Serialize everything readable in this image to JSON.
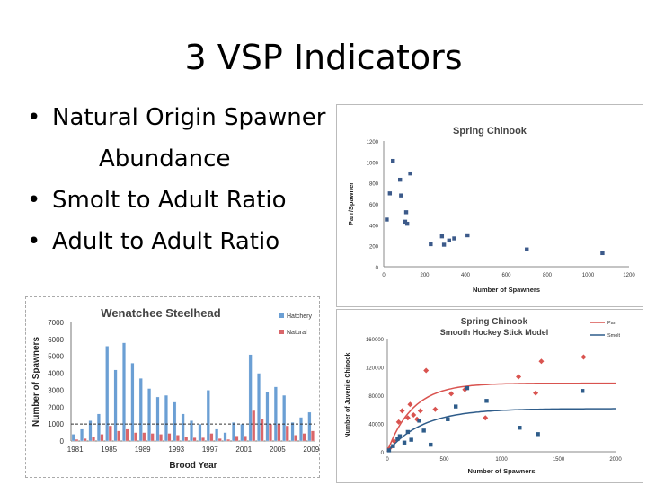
{
  "slide": {
    "title": "3 VSP Indicators",
    "bullets": [
      {
        "text": "Natural Origin Spawner",
        "cont": "Abundance"
      },
      {
        "text": "Smolt to Adult Ratio",
        "cont": ""
      },
      {
        "text": "Adult to Adult Ratio",
        "cont": ""
      }
    ],
    "bullet_symbol": "•"
  },
  "chart_data": [
    {
      "id": "spring-chinook-scatter",
      "type": "scatter",
      "title": "Spring Chinook",
      "xlabel": "Number of Spawners",
      "ylabel": "Parr/Spawner",
      "xlim": [
        0,
        1200
      ],
      "ylim": [
        0,
        1200
      ],
      "xticks": [
        0,
        200,
        400,
        600,
        800,
        1000,
        1200
      ],
      "yticks": [
        0,
        200,
        400,
        600,
        800,
        1000,
        1200
      ],
      "grid": false,
      "color": "#3c5a8a",
      "series": [
        {
          "points": [
            [
              15,
              450
            ],
            [
              30,
              700
            ],
            [
              45,
              1010
            ],
            [
              80,
              830
            ],
            [
              85,
              680
            ],
            [
              110,
              520
            ],
            [
              105,
              430
            ],
            [
              115,
              410
            ],
            [
              130,
              890
            ],
            [
              230,
              215
            ],
            [
              285,
              290
            ],
            [
              295,
              210
            ],
            [
              320,
              250
            ],
            [
              345,
              270
            ],
            [
              410,
              300
            ],
            [
              700,
              165
            ],
            [
              1070,
              130
            ]
          ]
        }
      ]
    },
    {
      "id": "wenatchee-steelhead",
      "type": "bar",
      "title": "Wenatchee Steelhead",
      "xlabel": "Brood Year",
      "ylabel": "Number of Spawners",
      "ylim": [
        0,
        7000
      ],
      "yticks": [
        0,
        1000,
        2000,
        3000,
        4000,
        5000,
        6000,
        7000
      ],
      "xtick_labels": [
        "1981",
        "1985",
        "1989",
        "1993",
        "1997",
        "2001",
        "2005",
        "2009"
      ],
      "legend": "top-right",
      "reference_line": 1000,
      "categories": [
        "1981",
        "1982",
        "1983",
        "1984",
        "1985",
        "1986",
        "1987",
        "1988",
        "1989",
        "1990",
        "1991",
        "1992",
        "1993",
        "1994",
        "1995",
        "1996",
        "1997",
        "1998",
        "1999",
        "2000",
        "2001",
        "2002",
        "2003",
        "2004",
        "2005",
        "2006",
        "2007",
        "2008",
        "2009"
      ],
      "series": [
        {
          "name": "Hatchery",
          "color": "#6b9fd4",
          "values": [
            400,
            700,
            1200,
            1600,
            5600,
            4200,
            5800,
            4600,
            3700,
            3100,
            2600,
            2700,
            2300,
            1600,
            1200,
            1000,
            3000,
            700,
            500,
            1100,
            1000,
            5100,
            4000,
            2900,
            3200,
            2700,
            1100,
            1400,
            1700
          ]
        },
        {
          "name": "Natural",
          "color": "#d9666a",
          "values": [
            100,
            150,
            250,
            400,
            900,
            600,
            700,
            500,
            500,
            450,
            400,
            450,
            350,
            250,
            200,
            200,
            450,
            150,
            100,
            300,
            300,
            1800,
            1300,
            1000,
            1000,
            900,
            350,
            450,
            600
          ]
        }
      ]
    },
    {
      "id": "spring-chinook-hockey",
      "type": "scatter",
      "title": "Spring Chinook",
      "subtitle": "Smooth Hockey Stick Model",
      "xlabel": "Number of Spawners",
      "ylabel": "Number of Juvenile Chinook",
      "xlim": [
        0,
        2000
      ],
      "ylim": [
        0,
        160000
      ],
      "xticks": [
        0,
        500,
        1000,
        1500,
        2000
      ],
      "yticks": [
        0,
        40000,
        80000,
        120000,
        160000
      ],
      "legend": "top-right",
      "series": [
        {
          "name": "Parr",
          "color": "#d9534f",
          "marker": "diamond",
          "fit": {
            "asymptote": 97000,
            "k": 0.0045
          },
          "points": [
            [
              20,
              5000
            ],
            [
              60,
              15000
            ],
            [
              100,
              42000
            ],
            [
              130,
              58000
            ],
            [
              180,
              48000
            ],
            [
              200,
              67000
            ],
            [
              230,
              52000
            ],
            [
              260,
              46000
            ],
            [
              290,
              58000
            ],
            [
              340,
              115000
            ],
            [
              420,
              60000
            ],
            [
              560,
              82000
            ],
            [
              680,
              88000
            ],
            [
              860,
              48000
            ],
            [
              1150,
              106000
            ],
            [
              1300,
              83000
            ],
            [
              1350,
              128000
            ],
            [
              1720,
              134000
            ]
          ]
        },
        {
          "name": "Smolt",
          "color": "#2e5c8a",
          "marker": "square",
          "fit": {
            "asymptote": 61000,
            "k": 0.0032
          },
          "points": [
            [
              15,
              2000
            ],
            [
              50,
              8000
            ],
            [
              90,
              18000
            ],
            [
              110,
              22000
            ],
            [
              150,
              13000
            ],
            [
              180,
              28000
            ],
            [
              210,
              17000
            ],
            [
              280,
              44000
            ],
            [
              320,
              30000
            ],
            [
              380,
              10000
            ],
            [
              530,
              46000
            ],
            [
              600,
              64000
            ],
            [
              700,
              90000
            ],
            [
              870,
              72000
            ],
            [
              1160,
              34000
            ],
            [
              1320,
              25000
            ],
            [
              1710,
              86000
            ]
          ]
        }
      ]
    }
  ]
}
